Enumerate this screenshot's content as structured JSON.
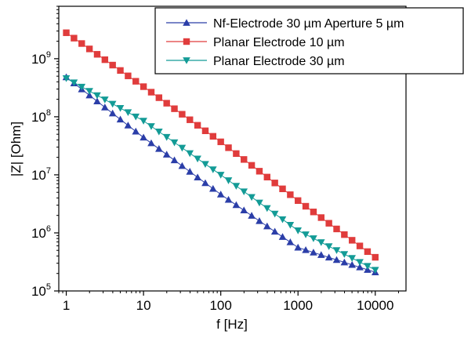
{
  "chart_data": {
    "type": "scatter",
    "x_scale": "log",
    "y_scale": "log",
    "xlabel": "f [Hz]",
    "ylabel": "|Z| [Ohm]",
    "xlim": [
      0.8,
      25000
    ],
    "ylim": [
      100000,
      8000000000
    ],
    "x_ticks": [
      {
        "value": 1,
        "label": "1"
      },
      {
        "value": 10,
        "label": "10"
      },
      {
        "value": 100,
        "label": "100"
      },
      {
        "value": 1000,
        "label": "1000"
      },
      {
        "value": 10000,
        "label": "10000"
      }
    ],
    "y_ticks": [
      {
        "value": 100000,
        "base": "10",
        "exp": "5"
      },
      {
        "value": 1000000,
        "base": "10",
        "exp": "6"
      },
      {
        "value": 10000000,
        "base": "10",
        "exp": "7"
      },
      {
        "value": 100000000,
        "base": "10",
        "exp": "8"
      },
      {
        "value": 1000000000,
        "base": "10",
        "exp": "9"
      }
    ],
    "grid": false,
    "legend_position": "top-right",
    "points_per_decade": 10,
    "series": [
      {
        "name": "Nf-Electrode 30 µm Aperture 5 µm",
        "color": "#2b3ea8",
        "marker": "triangle-up",
        "x_range": [
          1,
          10000
        ],
        "y_at_decades": [
          480000000,
          44000000,
          4600000,
          560000,
          210000
        ]
      },
      {
        "name": "Planar Electrode 10 µm",
        "color": "#e03c3c",
        "marker": "square",
        "x_range": [
          1,
          10000
        ],
        "y_at_decades": [
          2800000000,
          330000000,
          37000000,
          3600000,
          380000
        ]
      },
      {
        "name": "Planar Electrode 30 µm",
        "color": "#139b96",
        "marker": "triangle-down",
        "x_range": [
          1,
          10000
        ],
        "y_at_decades": [
          460000000,
          85000000,
          10000000,
          1100000,
          230000
        ]
      }
    ]
  }
}
